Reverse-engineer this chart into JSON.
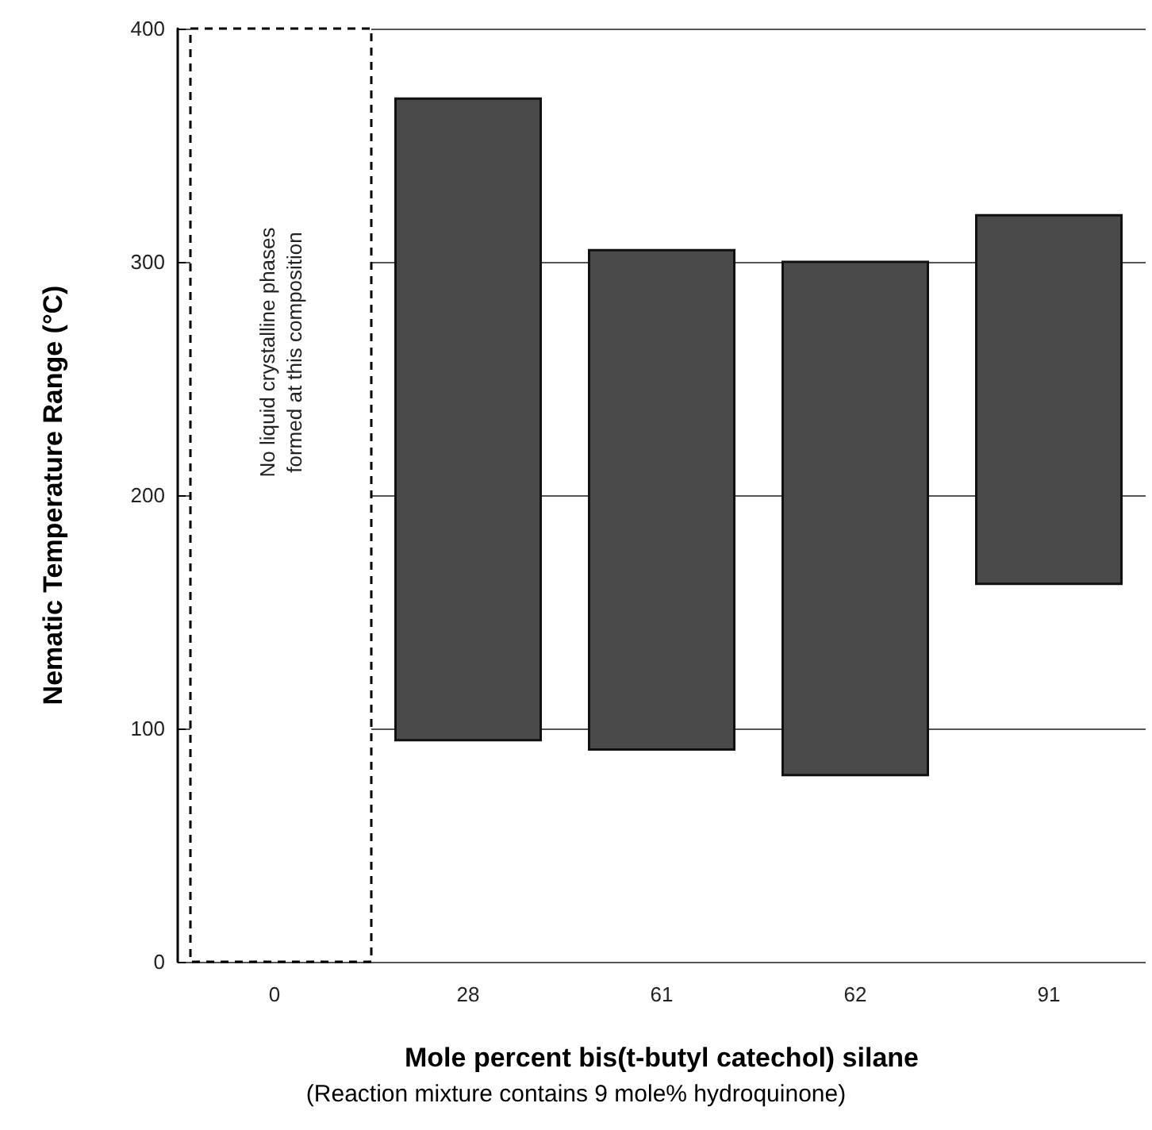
{
  "chart_data": {
    "type": "bar",
    "xlabel": "Mole percent bis(t-butyl catechol) silane",
    "ylabel": "Nematic Temperature Range (°C)",
    "categories": [
      "0",
      "28",
      "61",
      "62",
      "91"
    ],
    "values": [
      null,
      275,
      214,
      220,
      158
    ],
    "base": [
      null,
      95,
      91,
      80,
      162
    ],
    "color": "#4a4a4a",
    "ylim": [
      0,
      400
    ],
    "yticks": [
      0,
      100,
      200,
      300,
      400
    ],
    "grid": "y",
    "bands": [
      {
        "axis": "x",
        "from": "0",
        "to": "0",
        "label": "No liquid crystalline phases\nformed at this composition"
      }
    ],
    "annotations": [
      "(Reaction mixture contains 9 mole% hydroquinone)"
    ]
  }
}
